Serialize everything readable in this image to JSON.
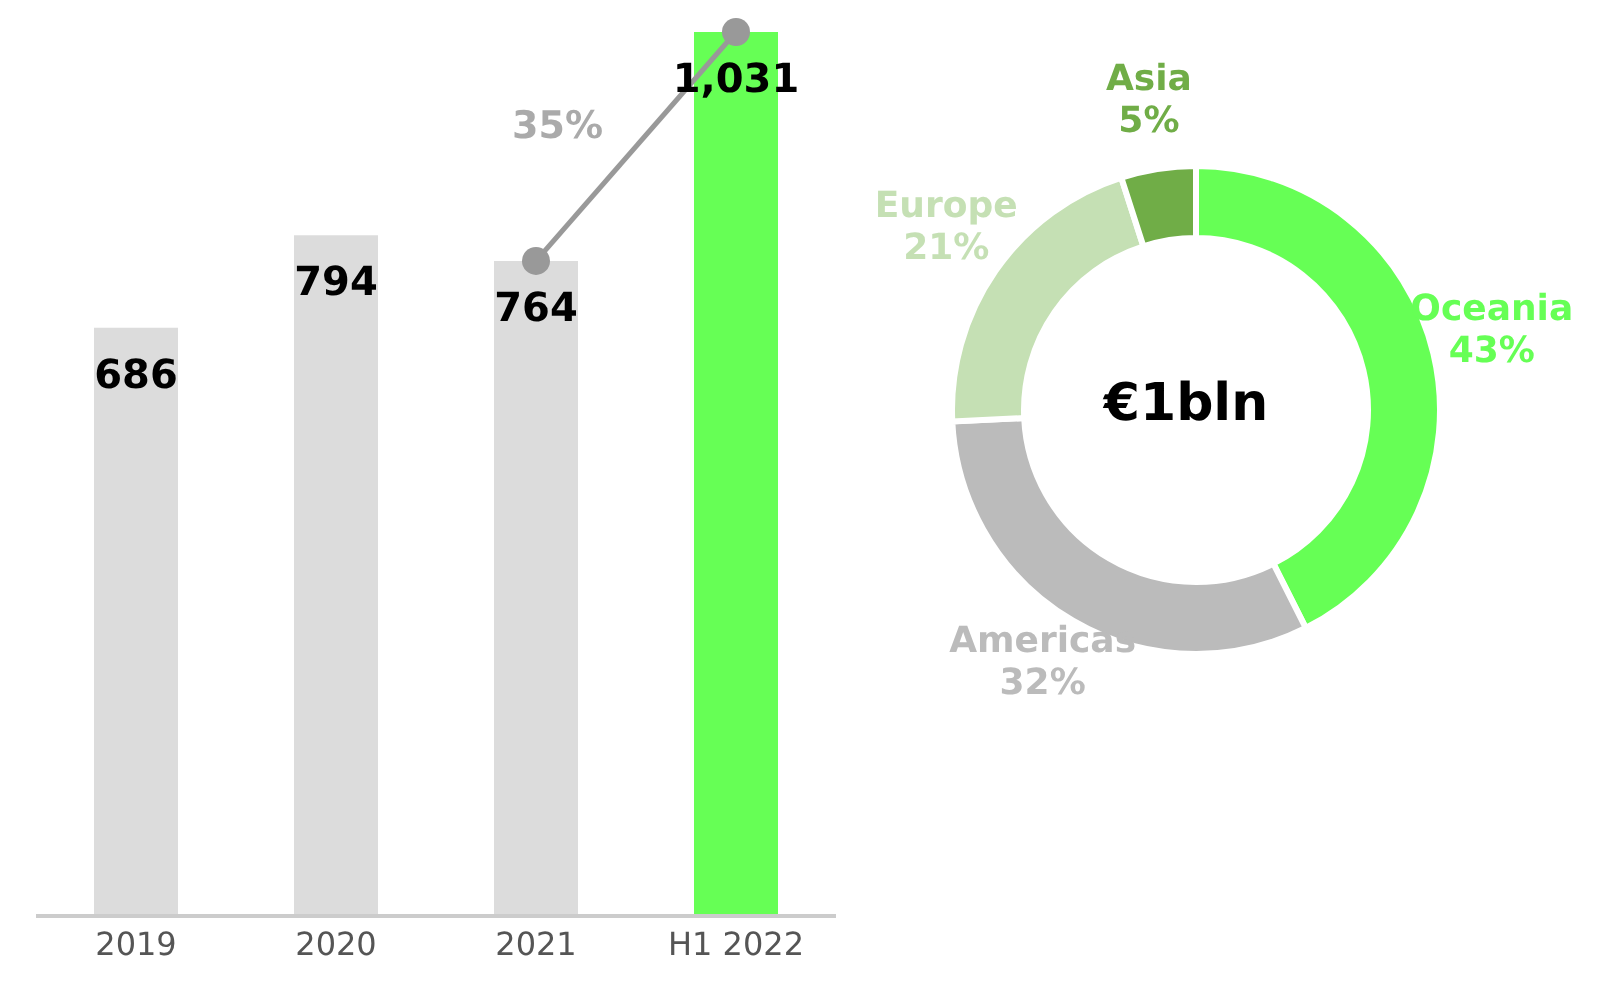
{
  "chart_data": [
    {
      "type": "bar",
      "categories": [
        "2019",
        "2020",
        "2021",
        "H1 2022"
      ],
      "series": [
        {
          "type": "bar",
          "colors": [
            "#dcdcdc",
            "#dcdcdc",
            "#dcdcdc",
            "#66ff55"
          ],
          "values": [
            686,
            794,
            764,
            1031
          ],
          "value_labels": [
            "686",
            "794",
            "764",
            "1,031"
          ]
        },
        {
          "type": "line",
          "color": "#999999",
          "values": [
            null,
            null,
            764,
            1031
          ]
        }
      ],
      "marker": "circle",
      "tick_labels": "x",
      "grid": false,
      "legend": false,
      "annotations": [
        "35%"
      ]
    },
    {
      "type": "donut",
      "categories": [
        "Oceania",
        "Americas",
        "Europe",
        "Asia"
      ],
      "values": [
        43,
        32,
        21,
        5
      ],
      "colors": [
        "#66ff55",
        "#bbbbbb",
        "#c5e0b4",
        "#70ad47"
      ],
      "value_labels": [
        "43%",
        "32%",
        "21%",
        "5%"
      ],
      "legend": false,
      "annotations": [
        "€1bln"
      ]
    }
  ]
}
